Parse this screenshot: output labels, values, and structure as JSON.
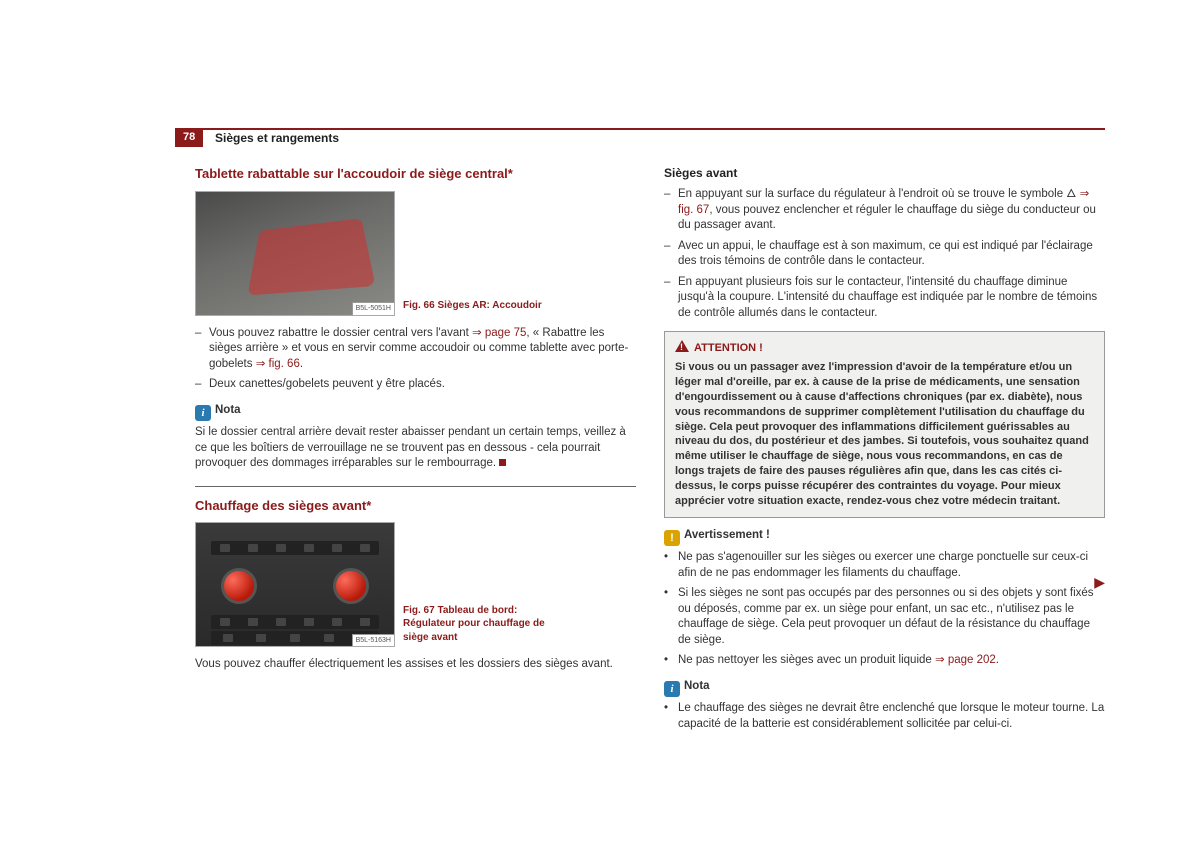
{
  "header": {
    "page_number": "78",
    "section": "Sièges et rangements"
  },
  "left": {
    "h1": "Tablette rabattable sur l'accoudoir de siège central*",
    "fig66": {
      "label": "B5L-5051H",
      "caption": "Fig. 66  Sièges AR: Accoudoir"
    },
    "bullets1": {
      "b1a": "Vous pouvez rabattre le dossier central vers l'avant ",
      "b1_link1": "⇒ page 75",
      "b1b": ", « Rabattre les sièges arrière » et vous en servir comme accoudoir ou comme tablette avec porte-gobelets ",
      "b1_link2": "⇒ fig. 66",
      "b1c": ".",
      "b2": "Deux canettes/gobelets peuvent y être placés."
    },
    "nota_label": "Nota",
    "nota_text": "Si le dossier central arrière devait rester abaisser pendant un certain temps, veillez à ce que les boîtiers de verrouillage ne se trouvent pas en dessous - cela pourrait provoquer des dommages irréparables sur le rembourrage.",
    "h2": "Chauffage des sièges avant*",
    "fig67": {
      "label": "B5L-5163H",
      "caption": "Fig. 67  Tableau de bord: Régulateur pour chauffage de siège avant"
    },
    "p2": "Vous pouvez chauffer électriquement les assises et les dossiers des sièges avant."
  },
  "right": {
    "h1": "Sièges avant",
    "bullets": {
      "b1a": "En appuyant sur la surface du régulateur à l'endroit où se trouve le symbole 🜂 ",
      "b1_link": "⇒ fig. 67",
      "b1b": ", vous pouvez enclencher et réguler le chauffage du siège du conducteur ou du passager avant.",
      "b2": "Avec un appui, le chauffage est à son maximum, ce qui est indiqué par l'éclairage des trois témoins de contrôle dans le contacteur.",
      "b3": "En appuyant plusieurs fois sur le contacteur, l'intensité du chauffage diminue jusqu'à la coupure. L'intensité du chauffage est indiquée par le nombre de témoins de contrôle allumés dans le contacteur."
    },
    "attention": {
      "title": "ATTENTION !",
      "text": "Si vous ou un passager avez l'impression d'avoir de la température et/ou un léger mal d'oreille, par ex. à cause de la prise de médicaments, une sensation d'engourdissement ou à cause d'affections chroniques (par ex. diabète), nous vous recommandons de supprimer complètement l'utilisation du chauffage du siège.  Cela peut provoquer des inflammations difficilement guérissables au niveau du dos, du postérieur et des jambes. Si toutefois, vous souhaitez quand même utiliser le chauffage de siège, nous vous recommandons, en cas de longs trajets de faire des pauses régulières afin que, dans les cas cités ci-dessus, le corps puisse récupérer des contraintes du voyage. Pour mieux apprécier votre situation exacte, rendez-vous chez votre médecin traitant."
    },
    "avert": {
      "title": "Avertissement !",
      "b1": "Ne pas s'agenouiller sur les sièges ou exercer une charge ponctuelle sur ceux-ci afin de ne pas endommager les filaments du chauffage.",
      "b2": "Si les sièges ne sont pas occupés par des personnes ou si des objets y sont fixés ou déposés, comme par ex. un siège pour enfant, un sac etc., n'utilisez pas le chauffage de siège. Cela peut provoquer un défaut de la résistance du chauffage de siège.",
      "b3a": "Ne pas nettoyer les sièges avec un produit liquide ",
      "b3_link": "⇒ page 202",
      "b3b": "."
    },
    "nota": {
      "title": "Nota",
      "b1": "Le chauffage des sièges ne devrait être enclenché que lorsque le moteur tourne. La capacité de la batterie est considérablement sollicitée par celui-ci."
    }
  }
}
